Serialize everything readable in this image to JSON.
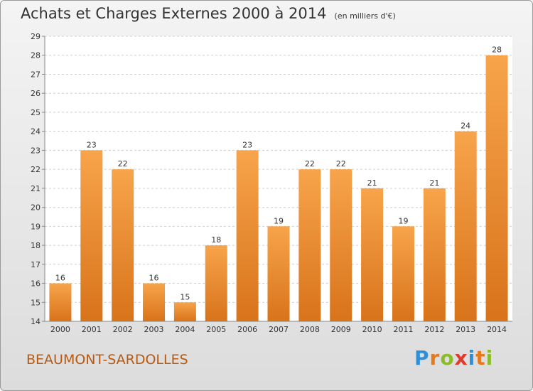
{
  "title": "Achats et Charges Externes 2000 à 2014",
  "subtitle": "(en milliers d'€)",
  "commune": "BEAUMONT-SARDOLLES",
  "logo": {
    "text": "Proxiti",
    "letters": [
      {
        "ch": "P",
        "color": "#2f8fd8"
      },
      {
        "ch": "r",
        "color": "#e8781e"
      },
      {
        "ch": "o",
        "color": "#8cbc2a"
      },
      {
        "ch": "x",
        "color": "#e03a2a"
      },
      {
        "ch": "i",
        "color": "#2f8fd8"
      },
      {
        "ch": "t",
        "color": "#e8781e"
      },
      {
        "ch": "i",
        "color": "#8cbc2a"
      }
    ]
  },
  "chart_data": {
    "type": "bar",
    "categories": [
      "2000",
      "2001",
      "2002",
      "2003",
      "2004",
      "2005",
      "2006",
      "2007",
      "2008",
      "2009",
      "2010",
      "2011",
      "2012",
      "2013",
      "2014"
    ],
    "values": [
      16,
      23,
      22,
      16,
      15,
      18,
      23,
      19,
      22,
      22,
      21,
      19,
      21,
      24,
      28
    ],
    "data_labels": [
      "16",
      "23",
      "22",
      "16",
      "15",
      "18",
      "23",
      "19",
      "22",
      "22",
      "21",
      "19",
      "21",
      "24",
      "28"
    ],
    "ylim": [
      14,
      29
    ],
    "yticks": [
      14,
      15,
      16,
      17,
      18,
      19,
      20,
      21,
      22,
      23,
      24,
      25,
      26,
      27,
      28,
      29
    ],
    "grid": true,
    "bar_color_top": "#f7a44b",
    "bar_color_bottom": "#d8731a"
  }
}
